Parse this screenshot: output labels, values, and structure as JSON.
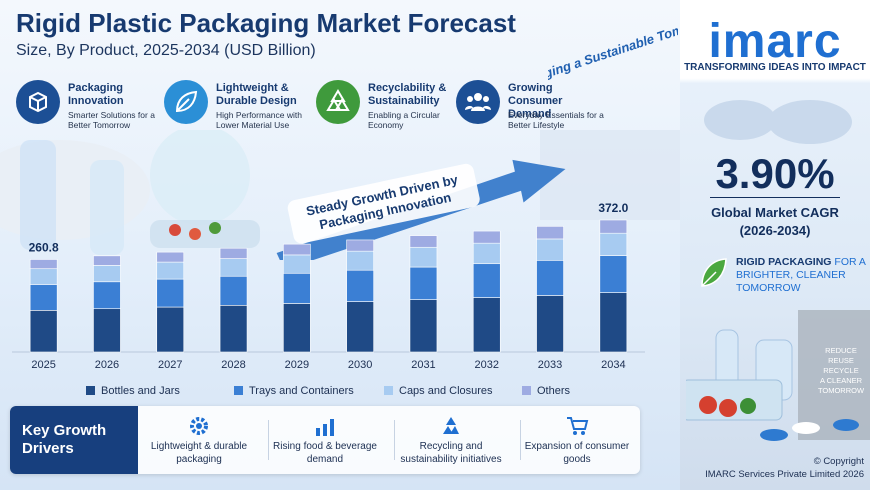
{
  "header": {
    "tagline": "Packaging a Sustainable Tomorrow"
  },
  "features": [
    {
      "title": "Packaging Innovation",
      "text": "Smarter Solutions for a Better Tomorrow"
    },
    {
      "title": "Lightweight & Durable Design",
      "text": "High Performance with Lower Material Use"
    },
    {
      "title": "Recyclability & Sustainability",
      "text": "Enabling a Circular Economy"
    },
    {
      "title": "Growing Consumer Demand",
      "text": "Everyday Essentials for a Better Lifestyle"
    }
  ],
  "banner": "Steady Growth Driven by Packaging Innovation",
  "chart_data": {
    "type": "stacked_bar",
    "title": "Rigid Plastic Packaging Market Forecast",
    "subtitle": "Size, By Product, 2025-2034 (USD Billion)",
    "categories": [
      "2025",
      "2026",
      "2027",
      "2028",
      "2029",
      "2030",
      "2031",
      "2032",
      "2033",
      "2034"
    ],
    "series": [
      {
        "name": "Bottles and Jars",
        "color": "#1f4a86",
        "values": [
          117.4,
          122.0,
          126.7,
          131.6,
          136.8,
          142.1,
          147.6,
          153.4,
          159.3,
          167.4
        ]
      },
      {
        "name": "Trays and Containers",
        "color": "#3b7fd4",
        "values": [
          73.0,
          75.9,
          78.8,
          81.9,
          85.1,
          88.4,
          91.8,
          95.4,
          99.1,
          104.2
        ]
      },
      {
        "name": "Caps and Closures",
        "color": "#a7cbf1",
        "values": [
          44.3,
          46.1,
          47.9,
          49.7,
          51.7,
          53.7,
          55.8,
          57.9,
          60.2,
          63.2
        ]
      },
      {
        "name": "Others",
        "color": "#9eabe2",
        "values": [
          26.1,
          27.0,
          28.1,
          29.3,
          30.4,
          31.6,
          32.8,
          34.1,
          35.5,
          37.2
        ]
      }
    ],
    "totals": [
      260.8,
      null,
      null,
      null,
      null,
      null,
      null,
      null,
      null,
      372.0
    ],
    "total_labels": [
      "260.8",
      null,
      null,
      null,
      null,
      null,
      null,
      null,
      null,
      "372.0"
    ]
  },
  "brand": {
    "logo": "imarc",
    "tagline": "TRANSFORMING IDEAS INTO IMPACT"
  },
  "cagr": {
    "value": "3.90%",
    "caption": "Global Market CAGR",
    "period": "(2026-2034)"
  },
  "slogan": {
    "highlight": "RIGID PACKAGING",
    "rest": "FOR A BRIGHTER, CLEANER TOMORROW"
  },
  "bin_text": [
    "REDUCE",
    "REUSE",
    "RECYCLE",
    "A CLEANER",
    "TOMORROW"
  ],
  "drivers": {
    "heading": "Key Growth Drivers",
    "items": [
      "Lightweight & durable packaging",
      "Rising food & beverage demand",
      "Recycling and sustainability initiatives",
      "Expansion of consumer goods"
    ]
  },
  "footer": {
    "copyright": "© Copyright",
    "company": "IMARC Services Private Limited 2026"
  }
}
